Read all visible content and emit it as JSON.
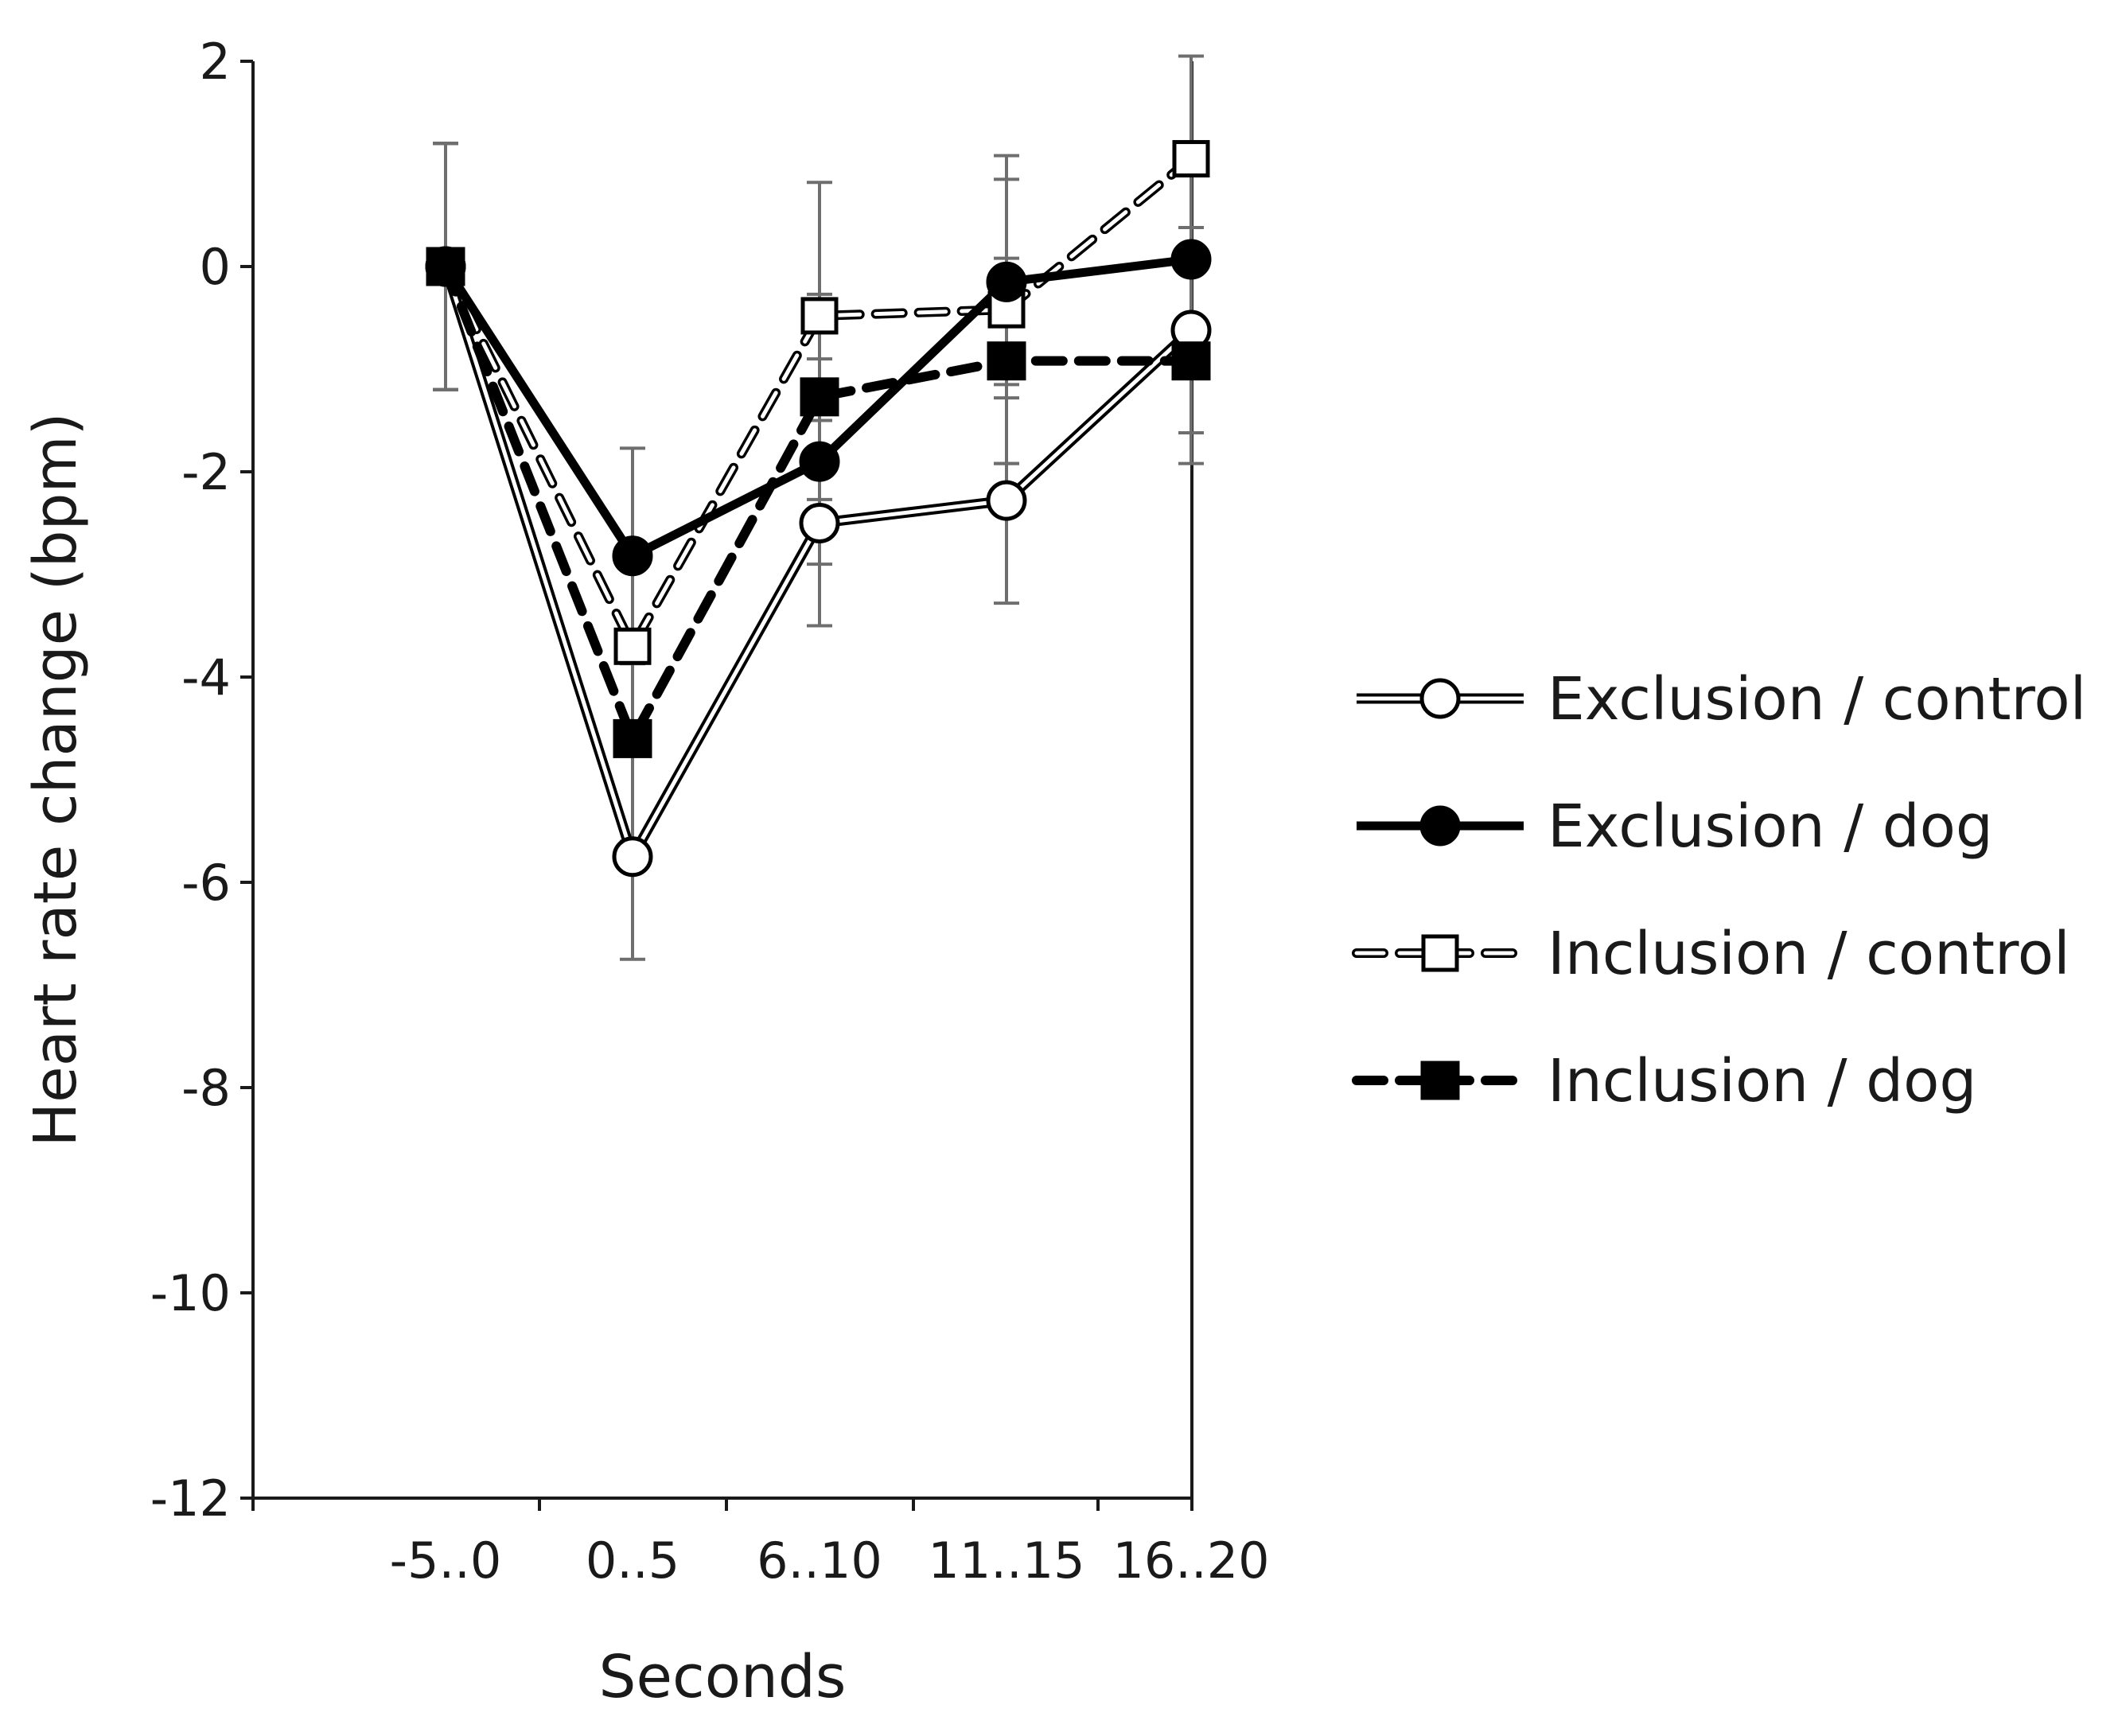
{
  "chart_data": {
    "type": "line",
    "title": "",
    "xlabel": "Seconds",
    "ylabel": "Heart rate change (bpm)",
    "categories": [
      "-5..0",
      "0..5",
      "6..10",
      "11..15",
      "16..20"
    ],
    "ylim": [
      -12,
      2
    ],
    "yticks": [
      "2",
      "0",
      "-2",
      "-4",
      "-6",
      "-8",
      "-10",
      "-12"
    ],
    "ytick_values": [
      2,
      0,
      -2,
      -4,
      -6,
      -8,
      -10,
      -12
    ],
    "grid": false,
    "legend_position": "right",
    "error_bars": true,
    "series": [
      {
        "name": "Exclusion / control",
        "values": [
          0,
          -5.75,
          -2.5,
          -2.28,
          -0.62
        ],
        "errors": [
          1.2,
          1.0,
          1.0,
          1.0,
          1.0
        ],
        "marker": "circle-open",
        "line": "double",
        "color": "#000000"
      },
      {
        "name": "Exclusion / dog",
        "values": [
          0,
          -2.82,
          -1.9,
          -0.15,
          0.07
        ],
        "errors": [
          1.2,
          1.05,
          1.0,
          1.0,
          1.0
        ],
        "marker": "circle-filled",
        "line": "solid-thick",
        "color": "#000000"
      },
      {
        "name": "Inclusion / control",
        "values": [
          0,
          -3.7,
          -0.48,
          -0.42,
          1.05
        ],
        "errors": [
          1.2,
          1.0,
          1.3,
          1.5,
          1.0
        ],
        "marker": "square-open",
        "line": "dashed-double",
        "color": "#000000"
      },
      {
        "name": "Inclusion / dog",
        "values": [
          0,
          -4.6,
          -1.27,
          -0.92,
          -0.92
        ],
        "errors": [
          1.2,
          1.0,
          1.0,
          1.0,
          1.0
        ],
        "marker": "square-filled",
        "line": "dashed-thick",
        "color": "#000000"
      }
    ]
  },
  "colors": {
    "axis": "#1a1a1a",
    "error_bar": "#6e6e6e",
    "marker_fill_open": "#ffffff",
    "marker_fill_filled": "#000000"
  }
}
